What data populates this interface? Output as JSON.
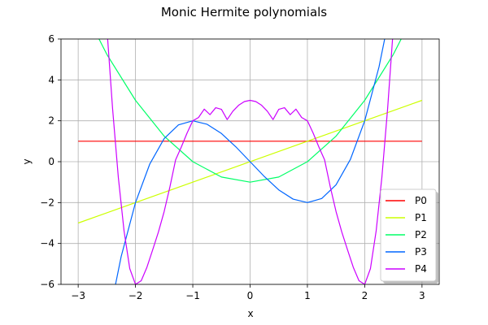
{
  "chart_data": {
    "type": "line",
    "title": "Monic Hermite polynomials",
    "xlabel": "x",
    "ylabel": "y",
    "xlim": [
      -3.3,
      3.3
    ],
    "ylim": [
      -6,
      6
    ],
    "xticks": [
      -3,
      -2,
      -1,
      0,
      1,
      2,
      3
    ],
    "yticks": [
      -6,
      -4,
      -2,
      0,
      2,
      4,
      6
    ],
    "grid": true,
    "legend_position": "lower-right",
    "series": [
      {
        "name": "P0",
        "color": "#ff0000",
        "x": [
          -3,
          3
        ],
        "y": [
          1,
          1
        ]
      },
      {
        "name": "P1",
        "color": "#ccff00",
        "x": [
          -3,
          3
        ],
        "y": [
          -3,
          3
        ]
      },
      {
        "name": "P2",
        "color": "#00ff66",
        "x": [
          -3,
          -2.5,
          -2,
          -1.5,
          -1,
          -0.5,
          0,
          0.5,
          1,
          1.5,
          2,
          2.5,
          3
        ],
        "y": [
          8,
          5.25,
          3,
          1.25,
          0,
          -0.75,
          -1,
          -0.75,
          0,
          1.25,
          3,
          5.25,
          8
        ]
      },
      {
        "name": "P3",
        "color": "#0066ff",
        "x": [
          -2.5,
          -2.25,
          -2,
          -1.75,
          -1.5,
          -1.25,
          -1,
          -0.75,
          -0.5,
          -0.25,
          0,
          0.25,
          0.5,
          0.75,
          1,
          1.25,
          1.5,
          1.75,
          2,
          2.25,
          2.5
        ],
        "y": [
          -8.1,
          -4.64,
          -2,
          -0.11,
          1.13,
          1.8,
          2,
          1.83,
          1.38,
          0.73,
          0,
          -0.73,
          -1.38,
          -1.83,
          -2,
          -1.8,
          -1.13,
          0.11,
          2,
          4.64,
          8.1
        ]
      },
      {
        "name": "P4",
        "color": "#cc00ff",
        "x": [
          -2.6,
          -2.5,
          -2.4,
          -2.3,
          -2.2,
          -2.1,
          -2,
          -1.9,
          -1.8,
          -1.7,
          -1.6,
          -1.5,
          -1.4,
          -1.3,
          -1.2,
          -1.1,
          -1,
          -0.9,
          -0.8,
          -0.7,
          -0.6,
          -0.5,
          -0.4,
          -0.3,
          -0.2,
          -0.1,
          0,
          0.1,
          0.2,
          0.3,
          0.4,
          0.5,
          0.6,
          0.7,
          0.8,
          0.9,
          1,
          1.1,
          1.2,
          1.3,
          1.4,
          1.5,
          1.6,
          1.7,
          1.8,
          1.9,
          2,
          2.1,
          2.2,
          2.3,
          2.4,
          2.5,
          2.6
        ],
        "y": [
          11.13,
          6.56,
          2.6,
          -0.75,
          -3.38,
          -5.23,
          -6,
          -5.82,
          -5.16,
          -4.31,
          -3.44,
          -2.44,
          -1.24,
          0.09,
          0.72,
          1.4,
          2,
          2.16,
          2.57,
          2.3,
          2.64,
          2.56,
          2.06,
          2.47,
          2.76,
          2.94,
          3,
          2.94,
          2.76,
          2.47,
          2.06,
          2.56,
          2.64,
          2.3,
          2.57,
          2.16,
          2,
          1.4,
          0.72,
          0.09,
          -1.24,
          -2.44,
          -3.44,
          -4.31,
          -5.16,
          -5.82,
          -6,
          -5.23,
          -3.38,
          -0.75,
          2.6,
          6.56,
          11.13
        ]
      }
    ]
  }
}
